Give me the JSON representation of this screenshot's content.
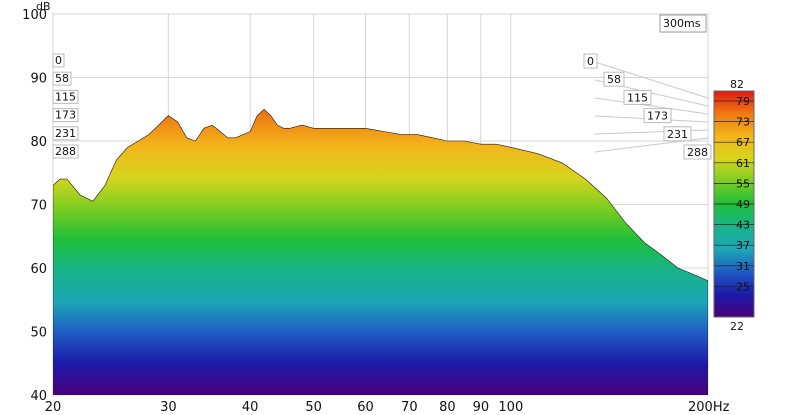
{
  "chart_data": {
    "type": "area",
    "variant": "waterfall-3d",
    "title": "",
    "ylabel": "dB",
    "ylim": [
      40,
      100
    ],
    "y_ticks": [
      "100",
      "90",
      "80",
      "70",
      "60",
      "50",
      "40"
    ],
    "x_scale": "log",
    "xlim": [
      20,
      200
    ],
    "x_ticks": [
      "20",
      "30",
      "40",
      "50",
      "60",
      "70",
      "80",
      "90",
      "100",
      "200Hz"
    ],
    "x_tick_values": [
      20,
      30,
      40,
      50,
      60,
      70,
      80,
      90,
      100,
      200
    ],
    "time_label": "300ms",
    "time_slices_ms": [
      "0",
      "58",
      "115",
      "173",
      "231",
      "288"
    ],
    "slice_count": 31,
    "colorbar": {
      "min_label": "22",
      "max_label": "82",
      "ticks": [
        "79",
        "73",
        "67",
        "61",
        "55",
        "49",
        "43",
        "37",
        "31",
        "25"
      ],
      "colors": [
        "#4a007a",
        "#1c1aa8",
        "#1f5cc4",
        "#1ca7b5",
        "#18b38a",
        "#1fbf3a",
        "#7ccc22",
        "#d7d51c",
        "#f2b51b",
        "#f07a12",
        "#e21812"
      ]
    },
    "front_slice": {
      "name": "0",
      "x": [
        20,
        20.5,
        21,
        22,
        23,
        24,
        25,
        26,
        27,
        28,
        29,
        30,
        31,
        32,
        33,
        34,
        35,
        36,
        37,
        38,
        39,
        40,
        41,
        42,
        43,
        44,
        45,
        46,
        48,
        50,
        53,
        56,
        60,
        64,
        68,
        72,
        76,
        80,
        85,
        90,
        95,
        100,
        110,
        120,
        130,
        140,
        150,
        160,
        170,
        180,
        190,
        200
      ],
      "y": [
        73,
        74,
        74,
        71.5,
        70.5,
        73,
        77,
        79,
        80,
        81,
        82.5,
        84,
        83,
        80.5,
        80,
        82,
        82.5,
        81.5,
        80.5,
        80.5,
        81,
        81.5,
        84,
        85,
        84,
        82.5,
        82,
        82,
        82.5,
        82,
        82,
        82,
        82,
        81.5,
        81,
        81,
        80.5,
        80,
        80,
        79.5,
        79.5,
        79,
        78,
        76.5,
        74,
        71,
        67,
        64,
        62,
        60,
        59,
        58
      ]
    }
  }
}
